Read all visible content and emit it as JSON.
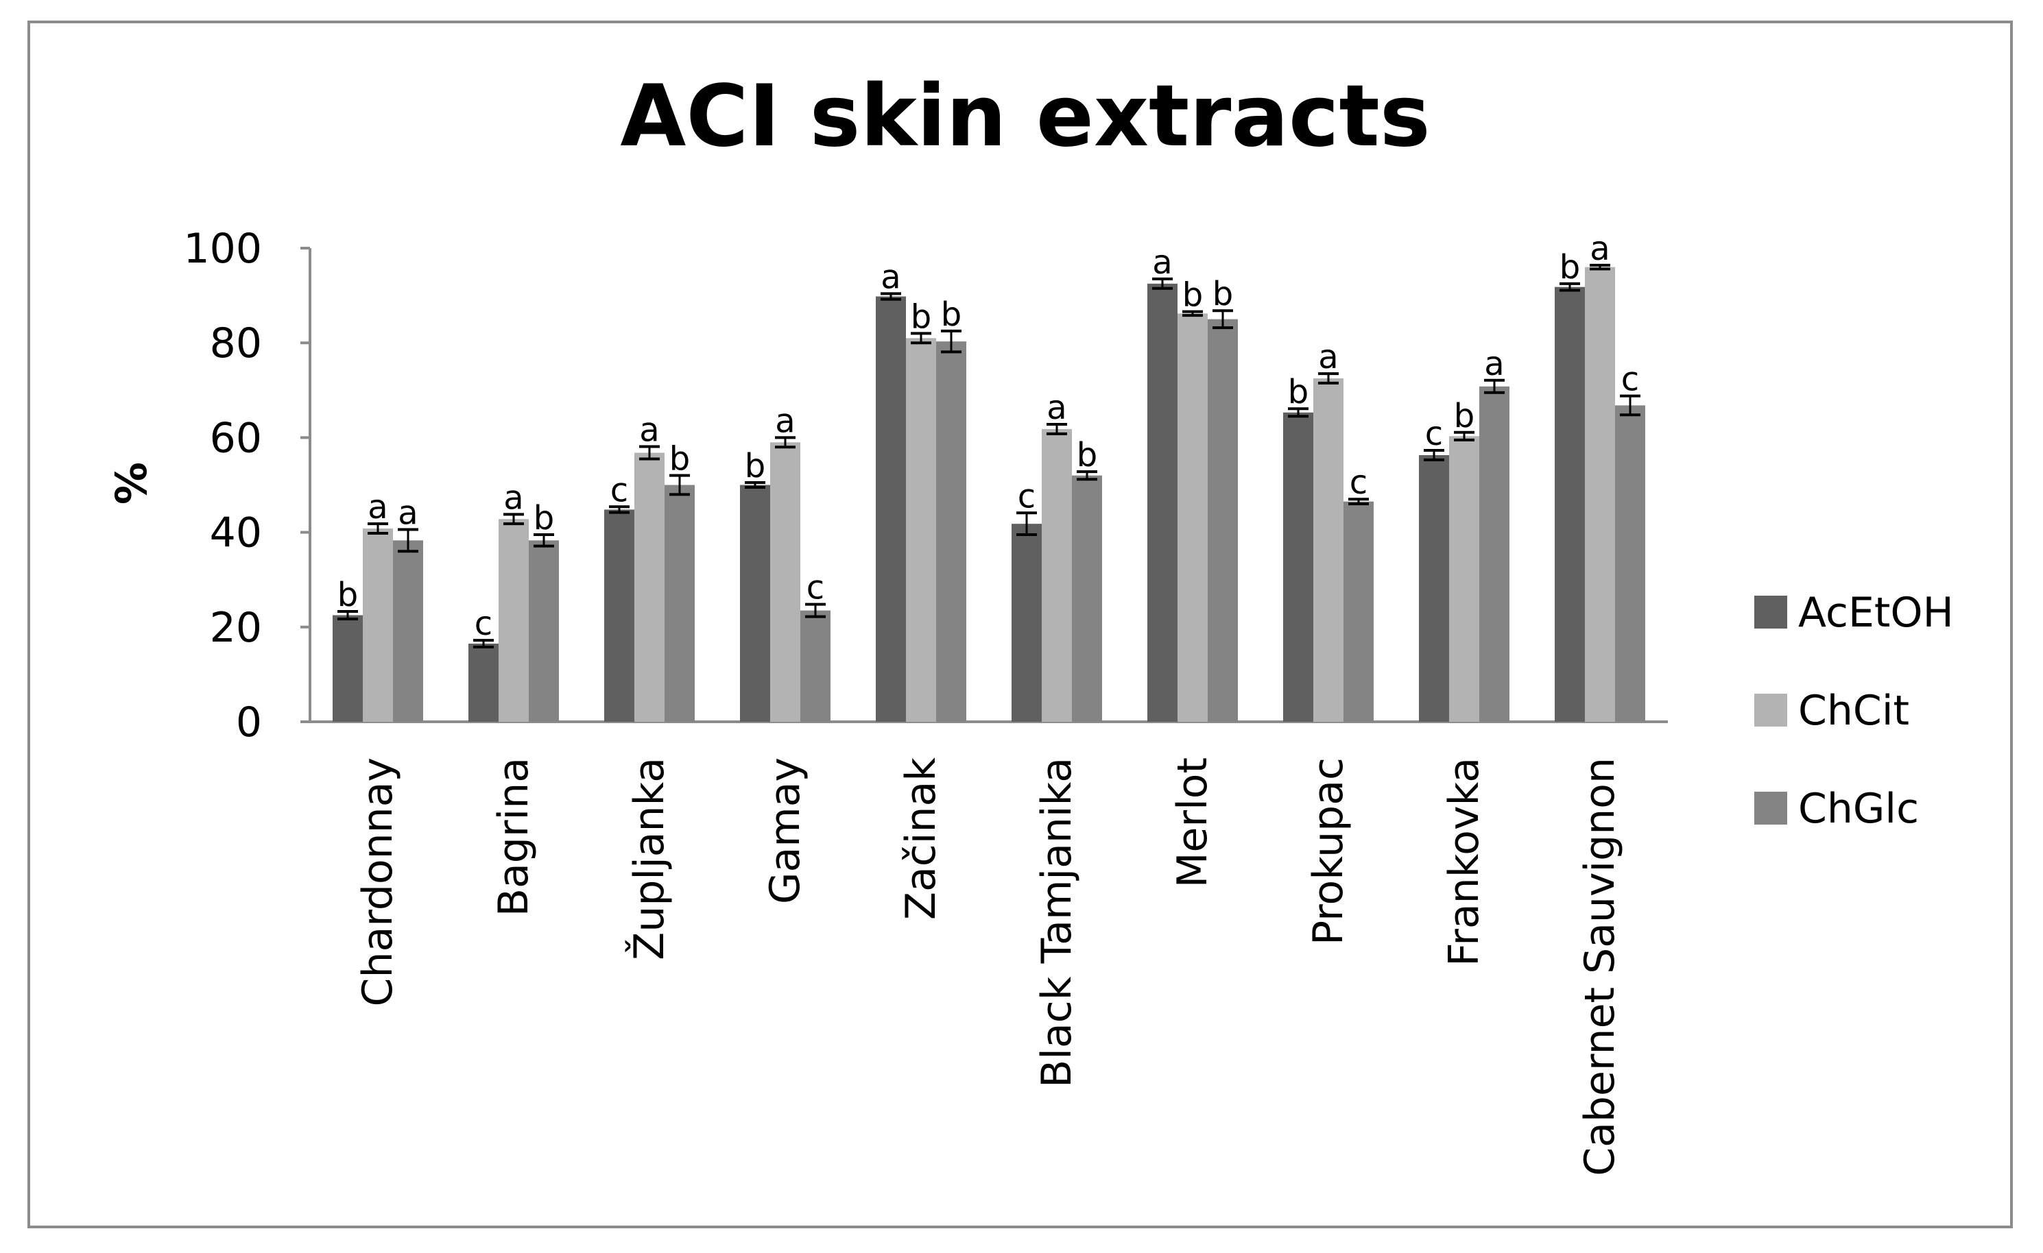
{
  "chart_data": {
    "type": "bar",
    "title": "ACI skin extracts",
    "xlabel": "",
    "ylabel": "%",
    "ylim": [
      0,
      100
    ],
    "yticks": [
      0,
      20,
      40,
      60,
      80,
      100
    ],
    "grid": false,
    "legend_position": "right",
    "categories": [
      "Chardonnay",
      "Bagrina",
      "Župljanka",
      "Gamay",
      "Začinak",
      "Black Tamjanika",
      "Merlot",
      "Prokupac",
      "Frankovka",
      "Cabernet Sauvignon"
    ],
    "series": [
      {
        "name": "AcEtOH",
        "color": "#606060",
        "values": [
          22.5,
          16.5,
          44.8,
          50,
          89.8,
          41.8,
          92.5,
          65.3,
          56.3,
          91.8
        ],
        "errors": [
          0.8,
          0.7,
          0.6,
          0.5,
          0.6,
          2.3,
          1.0,
          0.8,
          1.0,
          0.7
        ],
        "letters": [
          "b",
          "c",
          "c",
          "b",
          "a",
          "c",
          "a",
          "b",
          "c",
          "b"
        ]
      },
      {
        "name": "ChCit",
        "color": "#b3b3b3",
        "values": [
          40.8,
          42.8,
          56.8,
          59,
          81,
          61.8,
          86.2,
          72.5,
          60.3,
          96
        ],
        "errors": [
          1.0,
          1.0,
          1.3,
          1.0,
          1.0,
          1.0,
          0.4,
          1.0,
          0.8,
          0.4
        ],
        "letters": [
          "a",
          "a",
          "a",
          "a",
          "b",
          "a",
          "b",
          "a",
          "b",
          "a"
        ]
      },
      {
        "name": "ChGlc",
        "color": "#848484",
        "values": [
          38.3,
          38.3,
          50,
          23.5,
          80.3,
          52,
          85,
          46.5,
          70.8,
          66.8
        ],
        "errors": [
          2.3,
          1.2,
          2.0,
          1.3,
          2.2,
          0.8,
          1.8,
          0.5,
          1.3,
          2.0
        ],
        "letters": [
          "a",
          "b",
          "b",
          "c",
          "b",
          "b",
          "b",
          "c",
          "a",
          "c"
        ]
      }
    ]
  }
}
